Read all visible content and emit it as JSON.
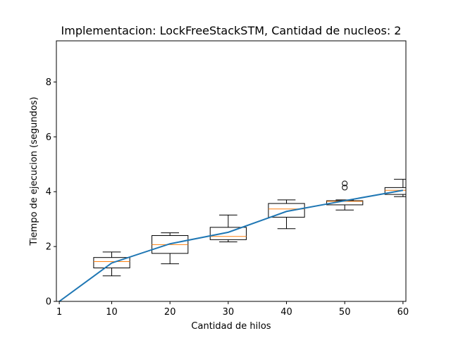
{
  "chart_data": {
    "type": "box",
    "title": "Implementacion: LockFreeStackSTM, Cantidad de nucleos: 2",
    "xlabel": "Cantidad de hilos",
    "ylabel": "Tiempo de ejecucion (segundos)",
    "xlim": [
      0.5,
      60.5
    ],
    "ylim": [
      0,
      9.5
    ],
    "xticks": [
      1,
      10,
      20,
      30,
      40,
      50,
      60
    ],
    "yticks": [
      0,
      2,
      4,
      6,
      8
    ],
    "grid": false,
    "legend": "none",
    "colors": {
      "box": "#000000",
      "median": "#ff7f0e",
      "line": "#1f77b4",
      "frame": "#000000"
    },
    "boxes": [
      {
        "x": 1,
        "whislo": 0.0,
        "q1": 0.0,
        "med": 0.0,
        "q3": 0.0,
        "whishi": 0.0,
        "fliers": []
      },
      {
        "x": 10,
        "whislo": 0.93,
        "q1": 1.22,
        "med": 1.45,
        "q3": 1.6,
        "whishi": 1.8,
        "fliers": []
      },
      {
        "x": 20,
        "whislo": 1.37,
        "q1": 1.75,
        "med": 2.07,
        "q3": 2.4,
        "whishi": 2.5,
        "fliers": []
      },
      {
        "x": 30,
        "whislo": 2.17,
        "q1": 2.25,
        "med": 2.37,
        "q3": 2.7,
        "whishi": 3.15,
        "fliers": []
      },
      {
        "x": 40,
        "whislo": 2.65,
        "q1": 3.07,
        "med": 3.37,
        "q3": 3.57,
        "whishi": 3.7,
        "fliers": []
      },
      {
        "x": 50,
        "whislo": 3.33,
        "q1": 3.52,
        "med": 3.65,
        "q3": 3.67,
        "whishi": 3.7,
        "fliers": [
          4.15,
          4.3
        ]
      },
      {
        "x": 60,
        "whislo": 3.82,
        "q1": 3.9,
        "med": 4.05,
        "q3": 4.15,
        "whishi": 4.45,
        "fliers": []
      }
    ],
    "line": {
      "x": [
        1,
        10,
        20,
        30,
        40,
        50,
        60
      ],
      "y": [
        0.0,
        1.4,
        2.1,
        2.52,
        3.28,
        3.67,
        4.05
      ]
    }
  }
}
